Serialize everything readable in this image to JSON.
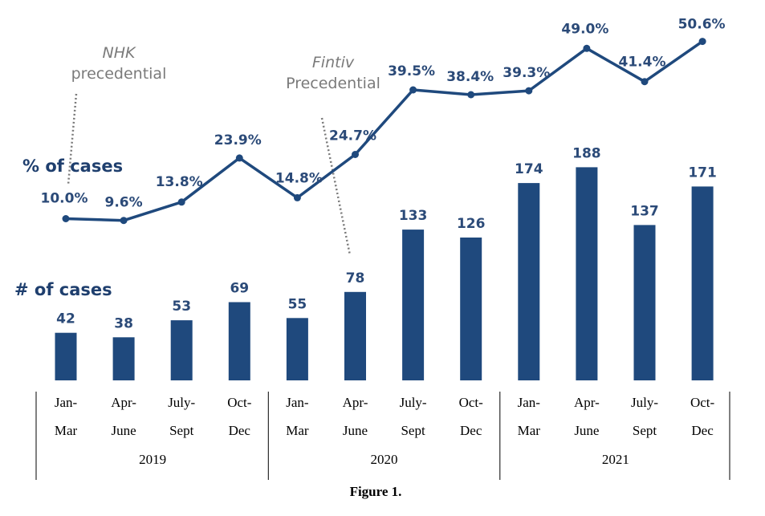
{
  "chart_data": {
    "type": "bar",
    "categories": [
      [
        "Jan-",
        "Mar"
      ],
      [
        "Apr-",
        "June"
      ],
      [
        "July-",
        "Sept"
      ],
      [
        "Oct-",
        "Dec"
      ],
      [
        "Jan-",
        "Mar"
      ],
      [
        "Apr-",
        "June"
      ],
      [
        "July-",
        "Sept"
      ],
      [
        "Oct-",
        "Dec"
      ],
      [
        "Jan-",
        "Mar"
      ],
      [
        "Apr-",
        "June"
      ],
      [
        "July-",
        "Sept"
      ],
      [
        "Oct-",
        "Dec"
      ]
    ],
    "groups": [
      {
        "label": "2019",
        "count": 4
      },
      {
        "label": "2020",
        "count": 4
      },
      {
        "label": "2021",
        "count": 4
      }
    ],
    "series": [
      {
        "name": "# of cases",
        "type": "bar",
        "values": [
          42,
          38,
          53,
          69,
          55,
          78,
          133,
          126,
          174,
          188,
          137,
          171
        ]
      },
      {
        "name": "% of cases",
        "type": "line",
        "values": [
          10.0,
          9.6,
          13.8,
          23.9,
          14.8,
          24.7,
          39.5,
          38.4,
          39.3,
          49.0,
          41.4,
          50.6
        ],
        "labels": [
          "10.0%",
          "9.6%",
          "13.8%",
          "23.9%",
          "14.8%",
          "24.7%",
          "39.5%",
          "38.4%",
          "39.3%",
          "49.0%",
          "41.4%",
          "50.6%"
        ]
      }
    ],
    "annotations": [
      {
        "text": [
          "NHK",
          "precedential"
        ],
        "category_index": 0
      },
      {
        "text": [
          "Fintiv",
          "Precedential"
        ],
        "category_index": 5
      }
    ],
    "caption": "Figure 1.",
    "colors": {
      "bar": "#1f497d",
      "line": "#1f497d",
      "annotation": "#7a7a7a"
    }
  }
}
